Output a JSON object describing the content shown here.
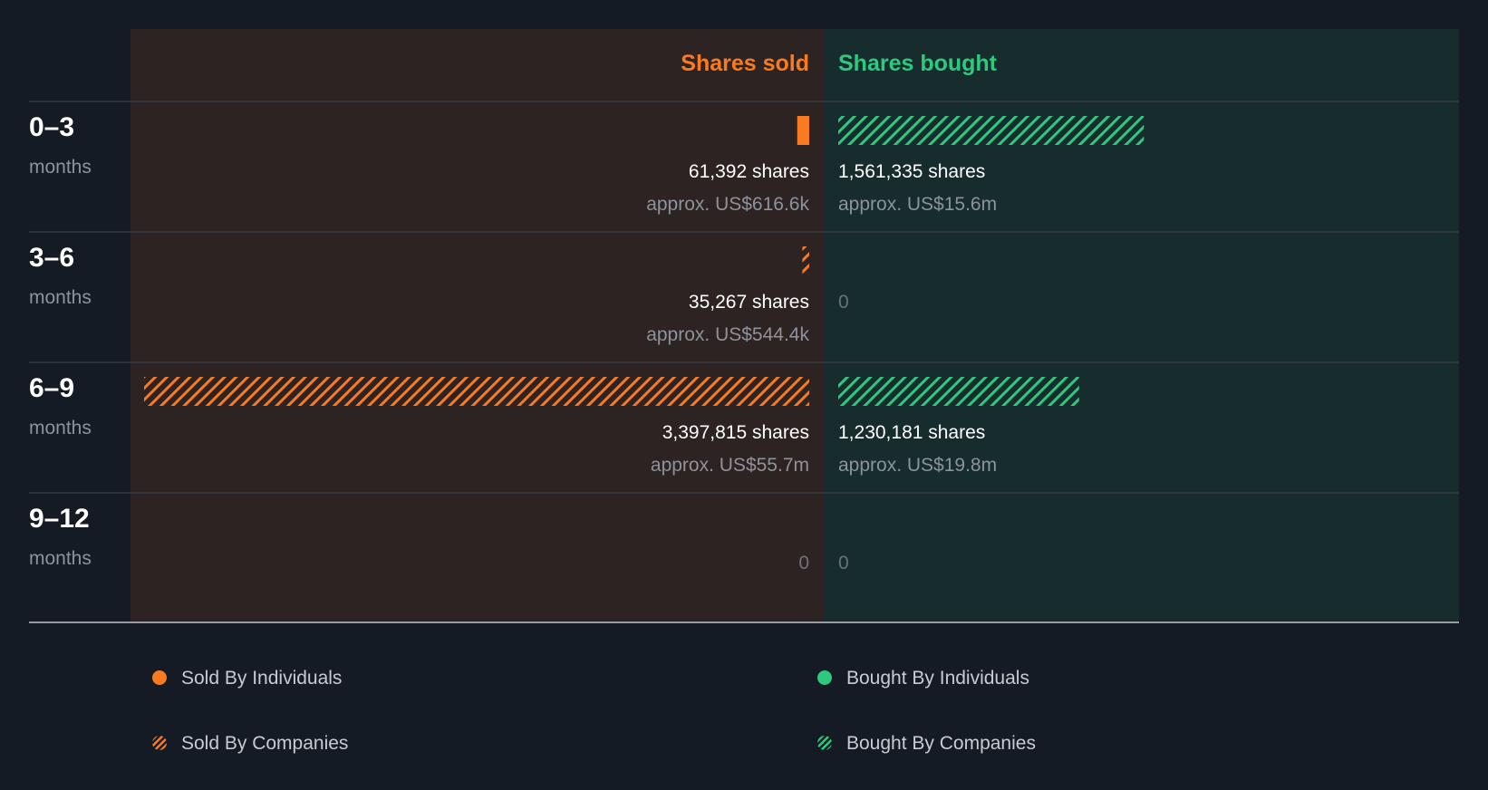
{
  "chart_data": {
    "type": "bar",
    "layout": "diverging-horizontal",
    "headers": {
      "sold": "Shares sold",
      "bought": "Shares bought"
    },
    "unit_label": "months",
    "colors": {
      "sold": "#f97a1f",
      "bought": "#2dc97e",
      "sold_bg": "#2d2322",
      "bought_bg": "#172c2c",
      "page_bg": "#151b24"
    },
    "max_value": 3397815,
    "rows": [
      {
        "range": "0–3",
        "sold": {
          "value": 61392,
          "by": "individuals",
          "shares_text": "61,392 shares",
          "approx_text": "approx. US$616.6k"
        },
        "bought": {
          "value": 1561335,
          "by": "companies",
          "shares_text": "1,561,335 shares",
          "approx_text": "approx. US$15.6m"
        }
      },
      {
        "range": "3–6",
        "sold": {
          "value": 35267,
          "by": "companies",
          "shares_text": "35,267 shares",
          "approx_text": "approx. US$544.4k"
        },
        "bought": {
          "value": 0,
          "by": "",
          "shares_text": "0",
          "approx_text": ""
        }
      },
      {
        "range": "6–9",
        "sold": {
          "value": 3397815,
          "by": "companies",
          "shares_text": "3,397,815 shares",
          "approx_text": "approx. US$55.7m"
        },
        "bought": {
          "value": 1230181,
          "by": "companies",
          "shares_text": "1,230,181 shares",
          "approx_text": "approx. US$19.8m"
        }
      },
      {
        "range": "9–12",
        "sold": {
          "value": 0,
          "by": "",
          "shares_text": "0",
          "approx_text": ""
        },
        "bought": {
          "value": 0,
          "by": "",
          "shares_text": "0",
          "approx_text": ""
        }
      }
    ],
    "legend": [
      {
        "label": "Sold By Individuals",
        "side": "sold",
        "style": "solid"
      },
      {
        "label": "Bought By Individuals",
        "side": "bought",
        "style": "solid"
      },
      {
        "label": "Sold By Companies",
        "side": "sold",
        "style": "hatched"
      },
      {
        "label": "Bought By Companies",
        "side": "bought",
        "style": "hatched"
      }
    ]
  }
}
